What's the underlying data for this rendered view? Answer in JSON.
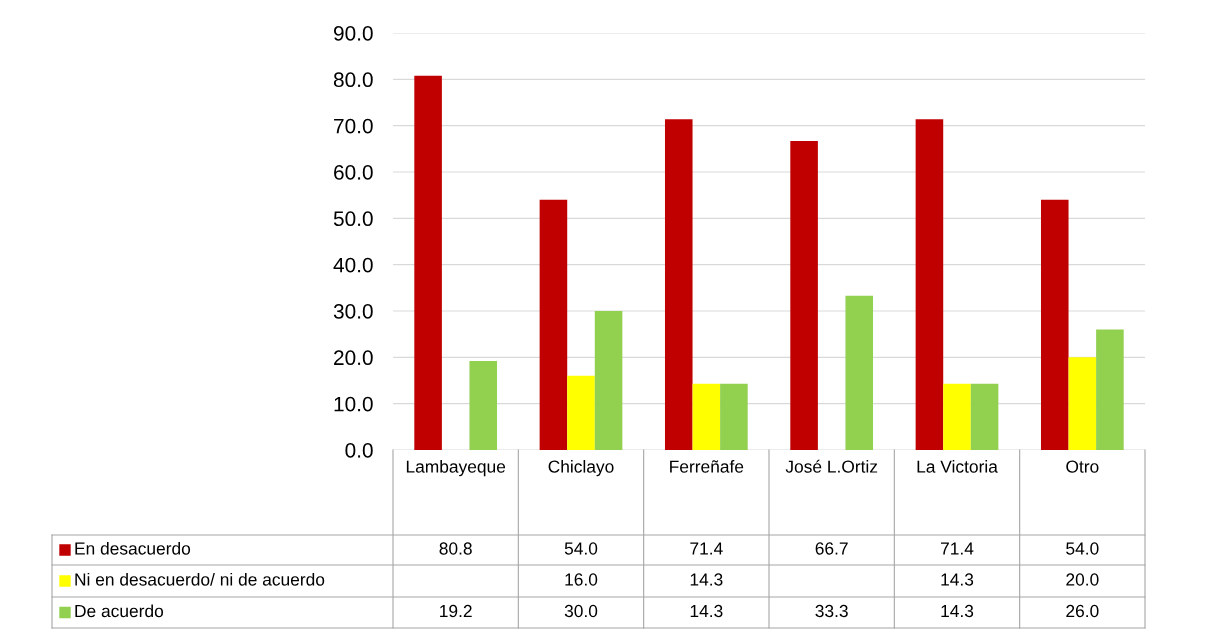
{
  "chart_data": {
    "type": "bar",
    "categories": [
      "Lambayeque",
      "Chiclayo",
      "Ferreñafe",
      "José L.Ortiz",
      "La Victoria",
      "Otro"
    ],
    "series": [
      {
        "name": "En desacuerdo",
        "color": "#c00000",
        "values": [
          80.8,
          54.0,
          71.4,
          66.7,
          71.4,
          54.0
        ],
        "value_labels": [
          "80.8",
          "54.0",
          "71.4",
          "66.7",
          "71.4",
          "54.0"
        ]
      },
      {
        "name": "Ni en desacuerdo/ ni de acuerdo",
        "color": "#ffff00",
        "values": [
          null,
          16.0,
          14.3,
          null,
          14.3,
          20.0
        ],
        "value_labels": [
          null,
          "16.0",
          "14.3",
          null,
          "14.3",
          "20.0"
        ]
      },
      {
        "name": "De acuerdo",
        "color": "#92d050",
        "values": [
          19.2,
          30.0,
          14.3,
          33.3,
          14.3,
          26.0
        ],
        "value_labels": [
          "19.2",
          "30.0",
          "14.3",
          "33.3",
          "14.3",
          "26.0"
        ]
      }
    ],
    "ylim": [
      0,
      90
    ],
    "yticks": [
      {
        "value": 0,
        "label": "0.0"
      },
      {
        "value": 10,
        "label": "10.0"
      },
      {
        "value": 20,
        "label": "20.0"
      },
      {
        "value": 30,
        "label": "30.0"
      },
      {
        "value": 40,
        "label": "40.0"
      },
      {
        "value": 50,
        "label": "50.0"
      },
      {
        "value": 60,
        "label": "60.0"
      },
      {
        "value": 70,
        "label": "70.0"
      },
      {
        "value": 80,
        "label": "80.0"
      },
      {
        "value": 90,
        "label": "90.0"
      }
    ],
    "grid": "y",
    "legend": "bottom"
  }
}
